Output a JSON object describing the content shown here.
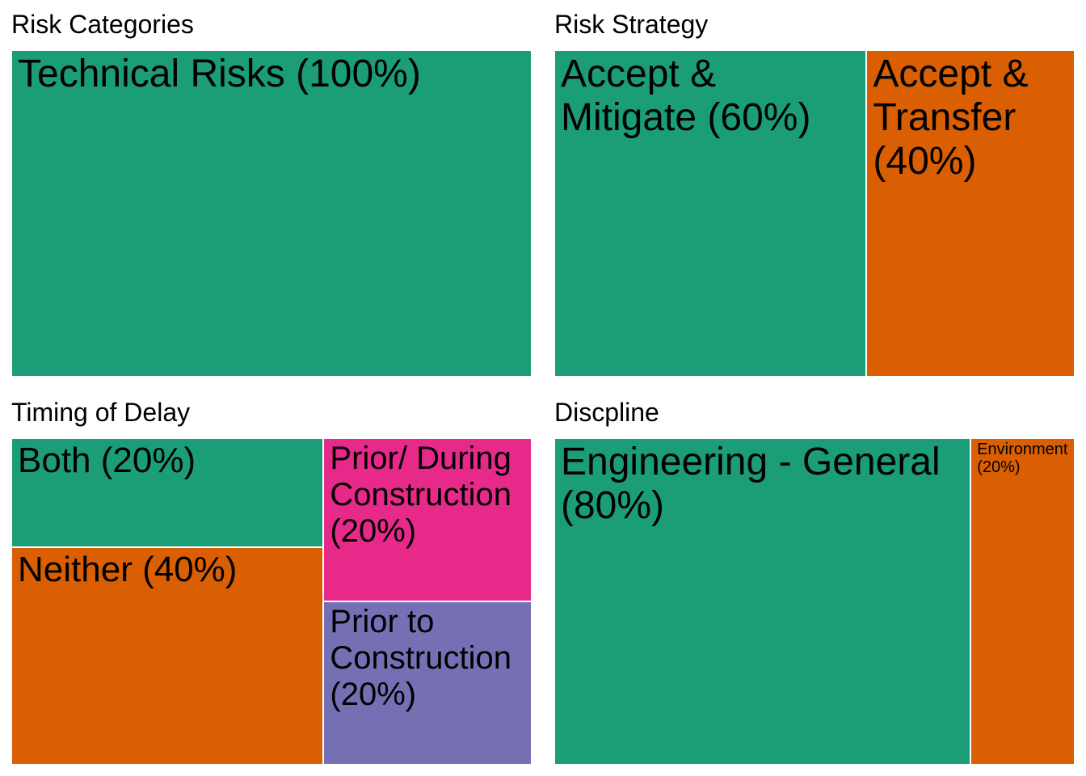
{
  "chart_data": [
    {
      "type": "treemap",
      "title": "Risk Categories",
      "nodes": [
        {
          "label": "Technical Risks (100%)",
          "value": 100,
          "color": "#1b9e77"
        }
      ]
    },
    {
      "type": "treemap",
      "title": "Risk Strategy",
      "nodes": [
        {
          "label": "Accept & Mitigate (60%)",
          "value": 60,
          "color": "#1b9e77"
        },
        {
          "label": "Accept & Transfer (40%)",
          "value": 40,
          "color": "#d95f02"
        }
      ]
    },
    {
      "type": "treemap",
      "title": "Timing of Delay",
      "nodes": [
        {
          "label": "Neither (40%)",
          "value": 40,
          "color": "#d95f02"
        },
        {
          "label": "Both (20%)",
          "value": 20,
          "color": "#1b9e77"
        },
        {
          "label": "Prior/ During Construction (20%)",
          "value": 20,
          "color": "#e7298a"
        },
        {
          "label": "Prior to Construction (20%)",
          "value": 20,
          "color": "#7570b3"
        }
      ]
    },
    {
      "type": "treemap",
      "title": "Discpline",
      "nodes": [
        {
          "label": "Engineering - General (80%)",
          "value": 80,
          "color": "#1b9e77"
        },
        {
          "label": "Environment (20%)",
          "value": 20,
          "color": "#d95f02"
        }
      ]
    }
  ]
}
